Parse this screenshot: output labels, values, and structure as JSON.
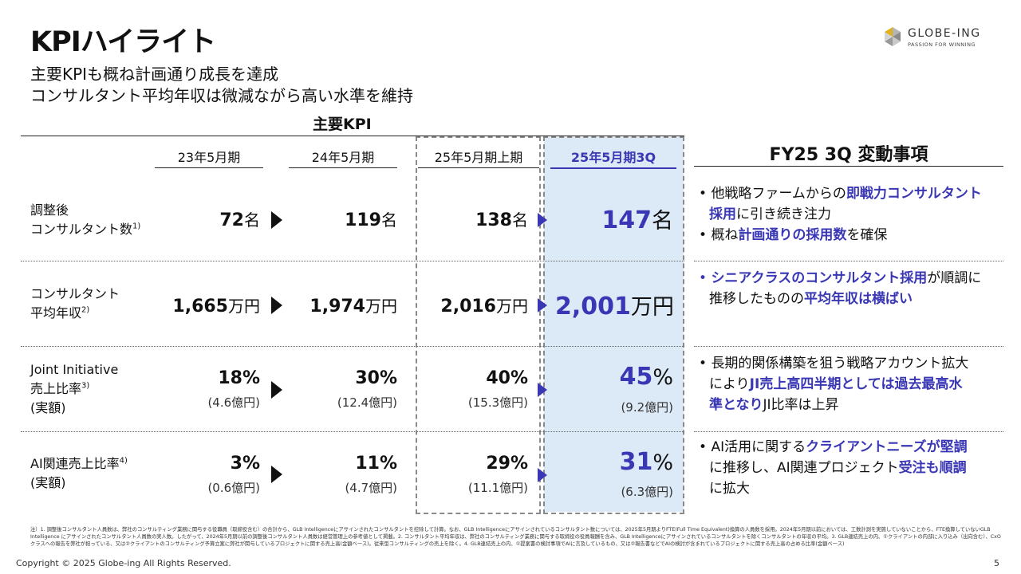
{
  "title": "KPIハイライト",
  "subtitle": {
    "line1": "主要KPIも概ね計画通り成長を達成",
    "line2": "コンサルタント平均年収は微減ながら高い水準を維持"
  },
  "logo": {
    "name": "GLOBE-ING",
    "tagline": "PASSION FOR WINNING"
  },
  "kpi_title": "主要KPI",
  "columns": [
    "23年5月期",
    "24年5月期",
    "25年5月期上期",
    "25年5月期3Q"
  ],
  "rows": [
    {
      "label1": "調整後",
      "label2": "コンサルタント数",
      "label_sup": "1)",
      "v1": "72",
      "u1": "名",
      "v2": "119",
      "u2": "名",
      "v3": "138",
      "u3": "名",
      "v4": "147",
      "u4": "名"
    },
    {
      "label1": "コンサルタント",
      "label2": "平均年収",
      "label_sup": "2)",
      "v1": "1,665",
      "u1": "万円",
      "v2": "1,974",
      "u2": "万円",
      "v3": "2,016",
      "u3": "万円",
      "v4": "2,001",
      "u4": "万円"
    },
    {
      "label1": "Joint Initiative",
      "label2": "売上比率",
      "label_sup": "3)",
      "label3": "(実額)",
      "v1": "18%",
      "s1": "(4.6億円)",
      "v2": "30%",
      "s2": "(12.4億円)",
      "v3": "40%",
      "s3": "(15.3億円)",
      "v4": "45",
      "u4": "%",
      "s4": "(9.2億円)"
    },
    {
      "label1": "AI関連売上比率",
      "label_sup": "4)",
      "label2": "(実額)",
      "v1": "3%",
      "s1": "(0.6億円)",
      "v2": "11%",
      "s2": "(4.7億円)",
      "v3": "29%",
      "s3": "(11.1億円)",
      "v4": "31",
      "u4": "%",
      "s4": "(6.3億円)"
    }
  ],
  "fy_title": "FY25 3Q 変動事項",
  "notes": {
    "n1a_pre": "他戦略ファームからの",
    "n1a_b": "即戦力コンサルタント",
    "n1a_b2": "採用",
    "n1a_post": "に引き続き注力",
    "n1b_pre": "概ね",
    "n1b_b": "計画通りの採用数",
    "n1b_post": "を確保",
    "n2_b": "シニアクラスのコンサルタント採用",
    "n2_post": "が順調に",
    "n2_l2_pre": "推移したものの",
    "n2_l2_b": "平均年収は横ばい",
    "n3_l1": "長期的関係構築を狙う戦略アカウント拡大",
    "n3_l2_pre": "により",
    "n3_l2_b": "JI売上高四半期としては過去最高水",
    "n3_l3_b": "準となり",
    "n3_l3_post": "JI比率は上昇",
    "n4_pre": "AI活用に関する",
    "n4_b": "クライアントニーズが堅調",
    "n4_l2_pre": "に推移し、AI関連プロジェクト",
    "n4_l2_b": "受注も順調",
    "n4_l3": "に拡大"
  },
  "footnote": "注）1. 調整後コンサルタント人員数は、弊社のコンサルティング業務に関与する役職員（取締役含む）の合計から、GLB Intelligenceにアサインされたコンサルタントを控除して計算。なお、GLB Intelligenceにアサインされているコンサルタント数については、2025年5月期よりFTE(Full Time Equivalent)換算の人員数を採用。2024年5月期以前においては、工数計測を実施していないことから、FTE換算していないGLB Intelligence にアサインされたコンサルタント人員数の実人数。したがって、2024年5月期以前の調整後コンサルタント人員数は経営管理上の参考値として掲載。2. コンサルタント平均年収は、弊社のコンサルティング業務に関与する取締役の役員報酬を含み、GLB Intelligenceにアサインされているコンサルタントを除くコンサルタントの年収の平均。3. GLB連結売上の内、①クライアントの内部に入り込み（出向含む）、CxOクラスへの報告を弊社が担っている、又は②クライアントのコンサルティング予算立案に弊社が関与しているプロジェクトに関する売上高(金額ベース)。従来型コンサルティングの売上を除く。4. GLB連結売上の内、①提案書の検討事項でAIに言及しているもの、又は②報告書などでAIの検討が含まれているプロジェクトに関する売上高の占める比率(金額ベース)",
  "copyright": "Copyright © 2025 Globe-ing All Rights Reserved.",
  "page_number": "5",
  "colors": {
    "accent": "#3a37b5",
    "highlight_bg": "#dce9f6"
  }
}
